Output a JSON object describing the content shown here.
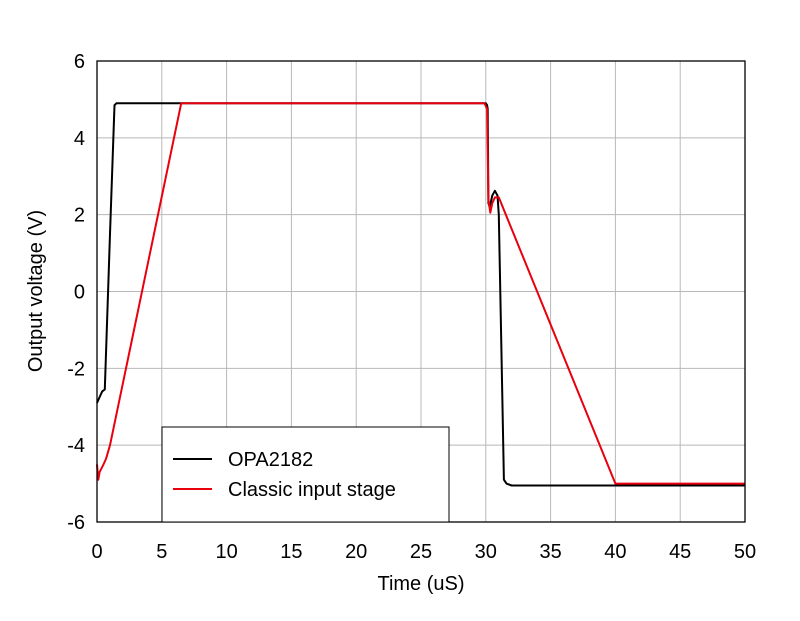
{
  "chart_data": {
    "type": "line",
    "title": "",
    "xlabel": "Time (uS)",
    "ylabel": "Output voltage (V)",
    "xlim": [
      0,
      50
    ],
    "ylim": [
      -6,
      6
    ],
    "xticks": [
      0,
      5,
      10,
      15,
      20,
      25,
      30,
      35,
      40,
      45,
      50
    ],
    "yticks": [
      -6,
      -4,
      -2,
      0,
      2,
      4,
      6
    ],
    "xtick_labels": [
      "0",
      "5",
      "10",
      "15",
      "20",
      "25",
      "30",
      "35",
      "40",
      "45",
      "50"
    ],
    "ytick_labels": [
      "-6",
      "-4",
      "-2",
      "0",
      "2",
      "4",
      "6"
    ],
    "grid": true,
    "legend_position": "bottom-left",
    "series": [
      {
        "name": "OPA2182",
        "color": "#000000",
        "x": [
          0,
          0.2,
          0.4,
          0.6,
          1.0,
          1.35,
          1.5,
          6.5,
          30.0,
          30.1,
          30.15,
          30.2,
          30.3,
          30.5,
          30.7,
          30.9,
          31.0,
          31.2,
          31.4,
          31.6,
          32.0,
          50
        ],
        "y": [
          -2.9,
          -2.75,
          -2.6,
          -2.55,
          1.5,
          4.85,
          4.9,
          4.9,
          4.9,
          4.85,
          4.75,
          2.3,
          2.2,
          2.5,
          2.62,
          2.5,
          2.0,
          -1.5,
          -4.9,
          -5.0,
          -5.05,
          -5.05
        ]
      },
      {
        "name": "Classic input stage",
        "color": "#e8000e",
        "x": [
          0,
          0.1,
          0.2,
          0.5,
          0.7,
          1.0,
          6.5,
          10,
          29.9,
          30.1,
          30.2,
          30.35,
          30.5,
          30.7,
          31.0,
          40.0,
          50
        ],
        "y": [
          -4.5,
          -4.9,
          -4.7,
          -4.5,
          -4.35,
          -4.0,
          4.9,
          4.9,
          4.9,
          4.75,
          2.4,
          2.05,
          2.3,
          2.45,
          2.45,
          -5.0,
          -5.0
        ]
      }
    ]
  }
}
